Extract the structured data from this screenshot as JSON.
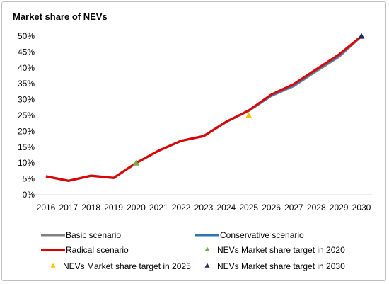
{
  "chart_data": {
    "type": "line",
    "title": "Market share of NEVs",
    "xlabel": "",
    "ylabel": "",
    "categories": [
      "2016",
      "2017",
      "2018",
      "2019",
      "2020",
      "2021",
      "2022",
      "2023",
      "2024",
      "2025",
      "2026",
      "2027",
      "2028",
      "2029",
      "2030"
    ],
    "ylim": [
      0,
      50
    ],
    "y_ticks": [
      "0%",
      "5%",
      "10%",
      "15%",
      "20%",
      "25%",
      "30%",
      "35%",
      "40%",
      "45%",
      "50%"
    ],
    "grid": false,
    "legend_position": "bottom",
    "series": [
      {
        "name": "Basic scenario",
        "color": "#808080",
        "marker": "line",
        "values": [
          5.8,
          4.4,
          6.0,
          5.3,
          10.0,
          13.9,
          17.0,
          18.5,
          23.0,
          26.5,
          31.2,
          34.3,
          39.0,
          43.5,
          50.0
        ]
      },
      {
        "name": "Conservative scenario",
        "color": "#2e75b6",
        "marker": "line",
        "values": [
          5.8,
          4.4,
          6.0,
          5.3,
          10.0,
          13.9,
          17.0,
          18.5,
          23.0,
          26.5,
          31.3,
          34.5,
          39.3,
          43.8,
          50.0
        ]
      },
      {
        "name": "Radical scenario",
        "color": "#e00000",
        "marker": "line",
        "values": [
          5.8,
          4.4,
          6.0,
          5.3,
          10.0,
          13.9,
          17.0,
          18.5,
          23.0,
          26.6,
          31.6,
          34.9,
          39.6,
          44.2,
          50.0
        ]
      },
      {
        "name": "NEVs Market share target in 2020",
        "color": "#70ad47",
        "marker": "triangle",
        "points": [
          {
            "x": "2020",
            "y": 10.0
          }
        ]
      },
      {
        "name": "NEVs Market share target in 2025",
        "color": "#ffc000",
        "marker": "triangle",
        "points": [
          {
            "x": "2025",
            "y": 25.0
          }
        ]
      },
      {
        "name": "NEVs Market share target in 2030",
        "color": "#1f2a5c",
        "marker": "triangle",
        "points": [
          {
            "x": "2030",
            "y": 50.0
          }
        ]
      }
    ]
  }
}
